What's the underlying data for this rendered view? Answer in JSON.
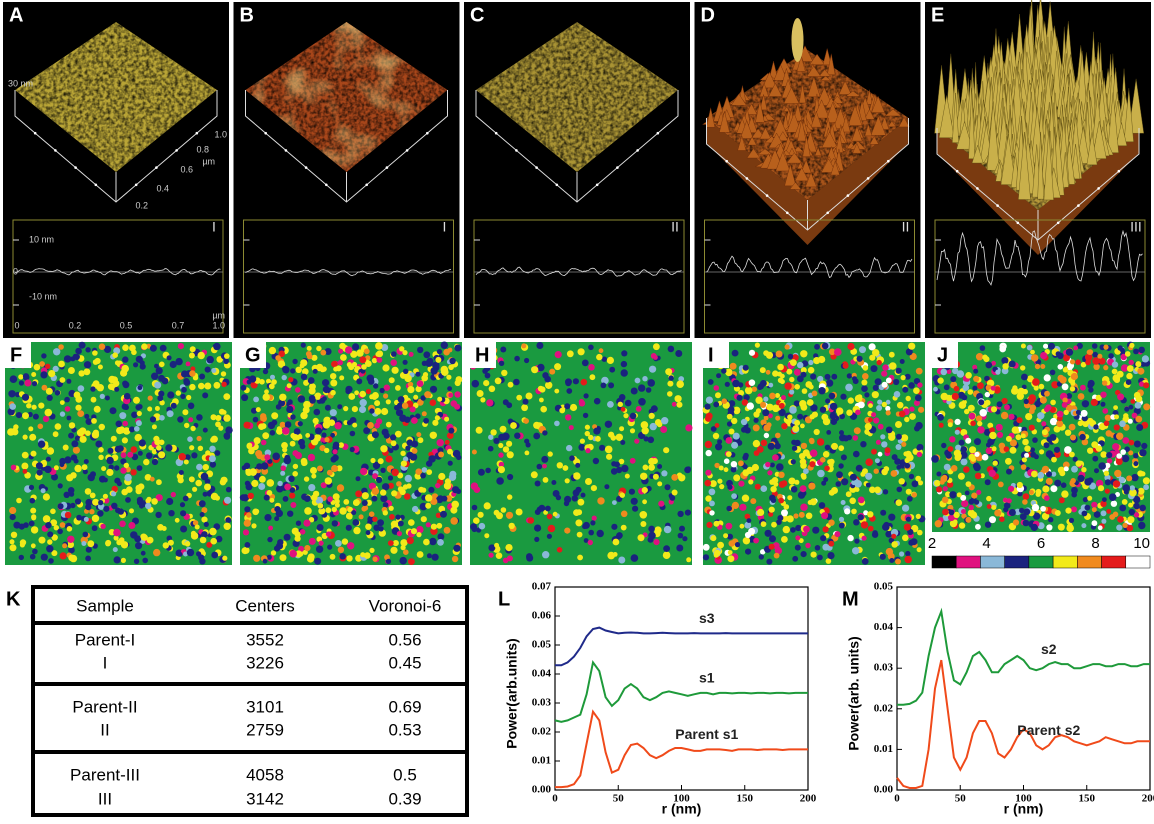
{
  "top_panels": [
    {
      "label": "A",
      "sample": "I",
      "surface_labels": [
        "30 nm",
        "1.0",
        "0.8",
        "µm",
        "0.6",
        "0.4",
        "0.2"
      ],
      "profile_labels": [
        "10 nm",
        "0",
        "-10 nm",
        "0",
        "0.2",
        "0.5",
        "0.7",
        "1.0",
        "µm"
      ]
    },
    {
      "label": "B",
      "sample": "I"
    },
    {
      "label": "C",
      "sample": "II"
    },
    {
      "label": "D",
      "sample": "II"
    },
    {
      "label": "E",
      "sample": "III"
    }
  ],
  "map_labels": [
    "F",
    "G",
    "H",
    "I",
    "J"
  ],
  "colorbar": {
    "colors": [
      "#000000",
      "#e0117f",
      "#8ab8d8",
      "#1a237e",
      "#1a9a40",
      "#f2ea1a",
      "#f08a1e",
      "#e41b1b",
      "#ffffff"
    ],
    "range": [
      2,
      10
    ],
    "ticks": [
      2,
      4,
      6,
      8,
      10
    ]
  },
  "table": {
    "label": "K",
    "columns": [
      "Sample",
      "Centers",
      "Voronoi-6"
    ],
    "rows": [
      [
        "Parent-I",
        3552,
        0.56
      ],
      [
        "I",
        3226,
        0.45
      ],
      [
        "Parent-II",
        3101,
        0.69
      ],
      [
        "II",
        2759,
        0.53
      ],
      [
        "Parent-III",
        4058,
        0.5
      ],
      [
        "III",
        3142,
        0.39
      ]
    ]
  },
  "chart_data": [
    {
      "type": "line",
      "label": "L",
      "ylabel": "Power(arb.units)",
      "xlabel": "r (nm)",
      "x": [
        0,
        5,
        10,
        15,
        20,
        25,
        30,
        35,
        40,
        45,
        50,
        55,
        60,
        65,
        70,
        75,
        80,
        85,
        90,
        95,
        100,
        105,
        110,
        115,
        120,
        125,
        130,
        135,
        140,
        145,
        150,
        155,
        160,
        165,
        170,
        175,
        180,
        185,
        190,
        195,
        200
      ],
      "xlim": [
        0,
        200
      ],
      "xticks": [
        0,
        50,
        100,
        150,
        200
      ],
      "ylim": [
        0,
        0.07
      ],
      "yticks": [
        {
          "value": 0,
          "label": "0.00"
        },
        {
          "value": 0.01,
          "label": "0.01"
        },
        {
          "value": 0.02,
          "label": "0.02"
        },
        {
          "value": 0.03,
          "label": "0.03"
        },
        {
          "value": 0.04,
          "label": "0.04"
        },
        {
          "value": 0.05,
          "label": "0.05"
        },
        {
          "value": 0.06,
          "label": "0.06"
        },
        {
          "value": 0.07,
          "label": "0.07"
        }
      ],
      "series": [
        {
          "name": "s3",
          "color": "#1f2a8a",
          "values": [
            0.043,
            0.043,
            0.044,
            0.046,
            0.049,
            0.053,
            0.0555,
            0.056,
            0.055,
            0.0545,
            0.054,
            0.0542,
            0.0543,
            0.0542,
            0.054,
            0.054,
            0.0541,
            0.0542,
            0.0541,
            0.054,
            0.054,
            0.054,
            0.0541,
            0.054,
            0.054,
            0.054,
            0.054,
            0.0541,
            0.054,
            0.054,
            0.054,
            0.054,
            0.054,
            0.054,
            0.054,
            0.054,
            0.054,
            0.054,
            0.054,
            0.054,
            0.054
          ]
        },
        {
          "name": "s1",
          "color": "#1e9a3a",
          "values": [
            0.024,
            0.0235,
            0.024,
            0.025,
            0.026,
            0.033,
            0.044,
            0.041,
            0.032,
            0.029,
            0.031,
            0.035,
            0.0365,
            0.035,
            0.032,
            0.031,
            0.032,
            0.0335,
            0.034,
            0.0335,
            0.033,
            0.0325,
            0.033,
            0.0335,
            0.0335,
            0.033,
            0.0335,
            0.0335,
            0.0333,
            0.0335,
            0.0335,
            0.0333,
            0.0335,
            0.0335,
            0.0333,
            0.0335,
            0.0335,
            0.0333,
            0.0335,
            0.0335,
            0.0335
          ]
        },
        {
          "name": "Parent s1",
          "color": "#f04a1a",
          "values": [
            0.001,
            0.001,
            0.0012,
            0.002,
            0.005,
            0.016,
            0.027,
            0.024,
            0.013,
            0.006,
            0.007,
            0.012,
            0.0155,
            0.016,
            0.0145,
            0.012,
            0.011,
            0.012,
            0.0135,
            0.0145,
            0.0145,
            0.014,
            0.0135,
            0.0135,
            0.014,
            0.014,
            0.014,
            0.0138,
            0.0135,
            0.014,
            0.014,
            0.014,
            0.0138,
            0.014,
            0.014,
            0.014,
            0.0138,
            0.014,
            0.014,
            0.014,
            0.014
          ]
        }
      ]
    },
    {
      "type": "line",
      "label": "M",
      "ylabel": "Power(arb. units)",
      "xlabel": "r (nm)",
      "x": [
        0,
        5,
        10,
        15,
        20,
        25,
        30,
        35,
        40,
        45,
        50,
        55,
        60,
        65,
        70,
        75,
        80,
        85,
        90,
        95,
        100,
        105,
        110,
        115,
        120,
        125,
        130,
        135,
        140,
        145,
        150,
        155,
        160,
        165,
        170,
        175,
        180,
        185,
        190,
        195,
        200
      ],
      "xlim": [
        0,
        200
      ],
      "xticks": [
        0,
        50,
        100,
        150,
        200
      ],
      "ylim": [
        0,
        0.05
      ],
      "yticks": [
        {
          "value": 0,
          "label": "0.00"
        },
        {
          "value": 0.01,
          "label": "0.01"
        },
        {
          "value": 0.02,
          "label": "0.02"
        },
        {
          "value": 0.03,
          "label": "0.03"
        },
        {
          "value": 0.04,
          "label": "0.04"
        },
        {
          "value": 0.05,
          "label": "0.05"
        }
      ],
      "series": [
        {
          "name": "s2",
          "color": "#1e9a3a",
          "values": [
            0.021,
            0.021,
            0.0212,
            0.022,
            0.024,
            0.033,
            0.04,
            0.044,
            0.034,
            0.027,
            0.026,
            0.029,
            0.033,
            0.034,
            0.032,
            0.029,
            0.029,
            0.031,
            0.032,
            0.033,
            0.032,
            0.03,
            0.0295,
            0.03,
            0.031,
            0.0315,
            0.031,
            0.031,
            0.03,
            0.03,
            0.0305,
            0.031,
            0.031,
            0.0305,
            0.0305,
            0.031,
            0.031,
            0.0305,
            0.0305,
            0.031,
            0.031
          ]
        },
        {
          "name": "Parent s2",
          "color": "#f04a1a",
          "values": [
            0.003,
            0.001,
            0.0005,
            0.0005,
            0.001,
            0.01,
            0.025,
            0.032,
            0.02,
            0.008,
            0.005,
            0.008,
            0.014,
            0.017,
            0.017,
            0.014,
            0.009,
            0.008,
            0.01,
            0.013,
            0.015,
            0.014,
            0.011,
            0.01,
            0.011,
            0.013,
            0.0135,
            0.013,
            0.012,
            0.0115,
            0.011,
            0.0115,
            0.012,
            0.013,
            0.0125,
            0.012,
            0.0115,
            0.0115,
            0.012,
            0.012,
            0.012
          ]
        }
      ]
    }
  ]
}
